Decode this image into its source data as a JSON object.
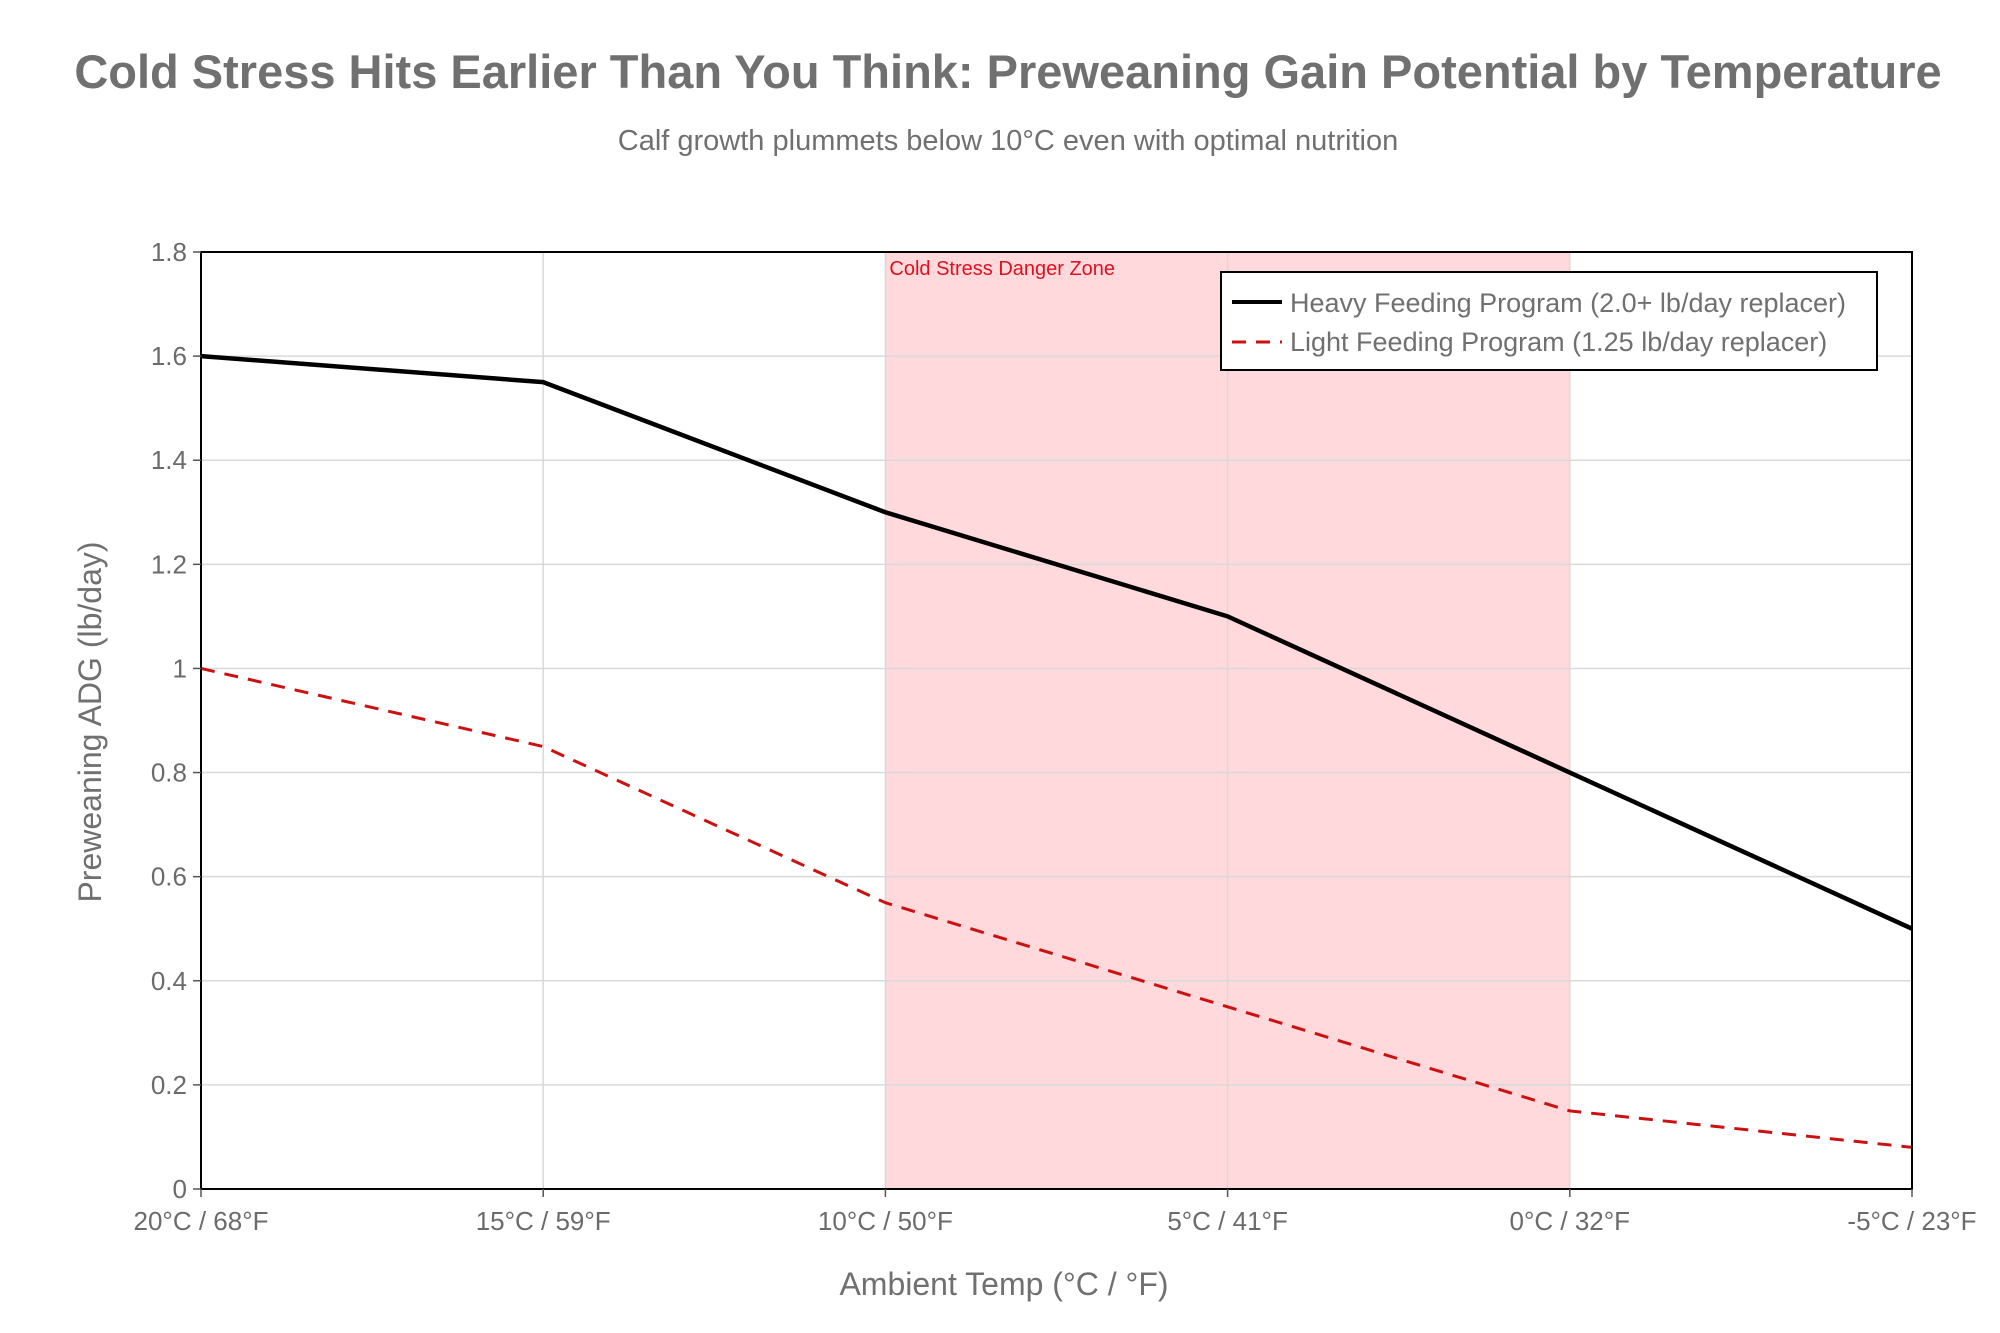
{
  "chart_data": {
    "type": "line",
    "title": "Cold Stress Hits Earlier Than You Think: Preweaning Gain Potential by Temperature",
    "subtitle": "Calf growth plummets below 10°C even with optimal nutrition",
    "xlabel": "Ambient Temp (°C / °F)",
    "ylabel": "Preweaning ADG (lb/day)",
    "categories": [
      "20°C / 68°F",
      "15°C / 59°F",
      "10°C / 50°F",
      "5°C / 41°F",
      "0°C / 32°F",
      "-5°C / 23°F"
    ],
    "ylim": [
      0,
      1.8
    ],
    "yticks": [
      {
        "value": 0,
        "label": "0"
      },
      {
        "value": 0.2,
        "label": "0.2"
      },
      {
        "value": 0.4,
        "label": "0.4"
      },
      {
        "value": 0.6,
        "label": "0.6"
      },
      {
        "value": 0.8,
        "label": "0.8"
      },
      {
        "value": 1.0,
        "label": "1"
      },
      {
        "value": 1.2,
        "label": "1.2"
      },
      {
        "value": 1.4,
        "label": "1.4"
      },
      {
        "value": 1.6,
        "label": "1.6"
      },
      {
        "value": 1.8,
        "label": "1.8"
      }
    ],
    "grid": true,
    "series": [
      {
        "name": "Heavy Feeding Program (2.0+ lb/day replacer)",
        "values": [
          1.6,
          1.55,
          1.3,
          1.1,
          0.8,
          0.5
        ],
        "color": "#000000",
        "dash": "solid"
      },
      {
        "name": "Light Feeding Program (1.25 lb/day replacer)",
        "values": [
          1.0,
          0.85,
          0.55,
          0.35,
          0.15,
          0.08
        ],
        "color": "#cc1111",
        "dash": "dashed"
      }
    ],
    "shaded_region": {
      "from_index": 2,
      "to_index": 4,
      "color": "#ffd9dc",
      "label": "Cold Stress Danger Zone",
      "label_color": "#e01020"
    },
    "legend_position": "top-right"
  }
}
